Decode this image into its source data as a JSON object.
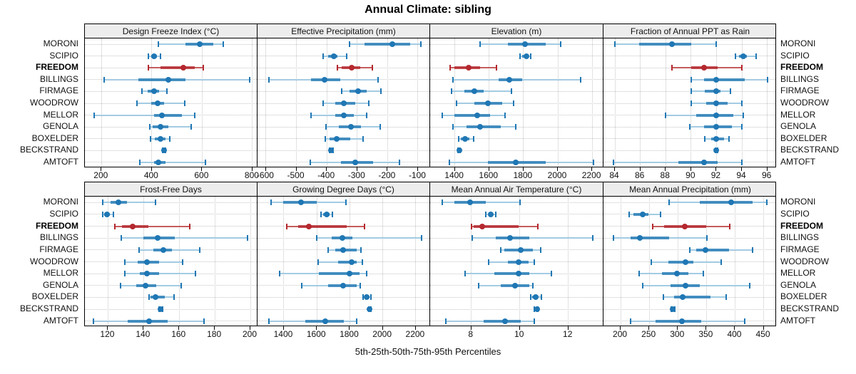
{
  "title": "Annual Climate: sibling",
  "caption": "5th-25th-50th-75th-95th Percentiles",
  "colors": {
    "station": "#1f77b4",
    "station_range": "#a3cbe2",
    "highlight": "#b4282e",
    "highlight_range": "#c45c5c",
    "grid": "#c4c4c4",
    "header_bg": "#ededed",
    "border": "#000000"
  },
  "chart_data": {
    "type": "scatter",
    "subtype": "dot-and-percentile-interval trellis",
    "title": "Annual Climate: sibling",
    "caption": "5th-25th-50th-75th-95th Percentiles",
    "percentile_labels": [
      "5th",
      "25th",
      "50th",
      "75th",
      "95th"
    ],
    "legend_position": "none",
    "grid": "dotted",
    "stations": [
      "MORONI",
      "SCIPIO",
      "FREEDOM",
      "BILLINGS",
      "FIRMAGE",
      "WOODROW",
      "MELLOR",
      "GENOLA",
      "BOXELDER",
      "BECKSTRAND",
      "AMTOFT"
    ],
    "highlight_station": "FREEDOM",
    "panels": [
      {
        "title": "Design Freeze Index (°C)",
        "row": 0,
        "col": 0,
        "xmin": 134,
        "xmax": 820,
        "ticks": [
          200,
          400,
          600,
          800
        ],
        "series": [
          [
            425,
            535,
            590,
            645,
            685
          ],
          [
            385,
            398,
            408,
            420,
            435
          ],
          [
            385,
            435,
            525,
            570,
            605
          ],
          [
            210,
            347,
            467,
            533,
            790
          ],
          [
            360,
            383,
            410,
            430,
            460
          ],
          [
            340,
            398,
            422,
            450,
            530
          ],
          [
            170,
            408,
            440,
            519,
            570
          ],
          [
            393,
            403,
            434,
            465,
            557
          ],
          [
            395,
            413,
            434,
            455,
            472
          ],
          [
            442,
            446,
            448,
            451,
            454
          ],
          [
            352,
            408,
            427,
            455,
            612
          ]
        ]
      },
      {
        "title": "Effective Precipitation (mm)",
        "row": 0,
        "col": 1,
        "xmin": -628,
        "xmax": -60,
        "ticks": [
          -600,
          -500,
          -400,
          -300,
          -200,
          -100
        ],
        "series": [
          [
            -325,
            -275,
            -185,
            -125,
            -90
          ],
          [
            -411,
            -396,
            -378,
            -364,
            -335
          ],
          [
            -364,
            -352,
            -318,
            -290,
            -251
          ],
          [
            -590,
            -452,
            -407,
            -356,
            -231
          ],
          [
            -350,
            -326,
            -297,
            -270,
            -223
          ],
          [
            -413,
            -373,
            -343,
            -306,
            -262
          ],
          [
            -452,
            -372,
            -343,
            -311,
            -269
          ],
          [
            -402,
            -360,
            -320,
            -287,
            -224
          ],
          [
            -406,
            -390,
            -367,
            -323,
            -281
          ],
          [
            -392,
            -389,
            -386,
            -383,
            -380
          ],
          [
            -454,
            -353,
            -306,
            -248,
            -161
          ]
        ]
      },
      {
        "title": "Elevation (m)",
        "row": 0,
        "col": 2,
        "xmin": 1256,
        "xmax": 2266,
        "ticks": [
          1400,
          1600,
          1800,
          2000,
          2200
        ],
        "series": [
          [
            1545,
            1710,
            1810,
            1930,
            2017
          ],
          [
            1778,
            1792,
            1817,
            1830,
            1840
          ],
          [
            1373,
            1397,
            1480,
            1545,
            1642
          ],
          [
            1390,
            1653,
            1716,
            1792,
            2134
          ],
          [
            1381,
            1457,
            1515,
            1567,
            1730
          ],
          [
            1411,
            1515,
            1591,
            1674,
            1743
          ],
          [
            1325,
            1397,
            1529,
            1605,
            1692
          ],
          [
            1390,
            1467,
            1547,
            1667,
            1754
          ],
          [
            1421,
            1434,
            1459,
            1484,
            1511
          ],
          [
            1420,
            1423,
            1426,
            1429,
            1432
          ],
          [
            1369,
            1591,
            1754,
            1928,
            2207
          ]
        ]
      },
      {
        "title": "Fraction of Annual PPT as Rain",
        "row": 0,
        "col": 3,
        "xmin": 83.1,
        "xmax": 96.75,
        "ticks": [
          84,
          86,
          88,
          90,
          92,
          94,
          96
        ],
        "series": [
          [
            84,
            85.9,
            88.5,
            90,
            92
          ],
          [
            93.5,
            93.8,
            94.1,
            94.4,
            95.1
          ],
          [
            88.5,
            90,
            91,
            92.1,
            94
          ],
          [
            90,
            91,
            92,
            94.2,
            96
          ],
          [
            90,
            91.1,
            92,
            92.3,
            93.1
          ],
          [
            90,
            91.2,
            92,
            92.9,
            94
          ],
          [
            88,
            90.4,
            92,
            93.3,
            94.1
          ],
          [
            89.9,
            91,
            92,
            93.2,
            94
          ],
          [
            91.1,
            91.6,
            92,
            92.6,
            93
          ],
          [
            91.9,
            91.95,
            92,
            92.05,
            92.1
          ],
          [
            83.9,
            89,
            91,
            92.1,
            94
          ]
        ]
      },
      {
        "title": "Frost-Free Days",
        "row": 1,
        "col": 0,
        "xmin": 107,
        "xmax": 204,
        "ticks": [
          120,
          140,
          160,
          180,
          200
        ],
        "series": [
          [
            117,
            121.5,
            126,
            130.5,
            146.5
          ],
          [
            117,
            118,
            119.5,
            121,
            123
          ],
          [
            124,
            128,
            134,
            142.5,
            166
          ],
          [
            127.5,
            140,
            148,
            157.5,
            198.5
          ],
          [
            137.5,
            145.5,
            151,
            156,
            171.5
          ],
          [
            129.5,
            136.5,
            142,
            148.5,
            162
          ],
          [
            129.5,
            138,
            142,
            148.5,
            169
          ],
          [
            127,
            136,
            141,
            147,
            161
          ],
          [
            143,
            144,
            146.5,
            152,
            157
          ],
          [
            148.5,
            149,
            149.5,
            150,
            150.5
          ],
          [
            112,
            131,
            143,
            153.5,
            174
          ]
        ]
      },
      {
        "title": "Growing Degree Days (°C)",
        "row": 1,
        "col": 1,
        "xmin": 1240,
        "xmax": 2287,
        "ticks": [
          1400,
          1600,
          1800,
          2000,
          2200
        ],
        "series": [
          [
            1323,
            1397,
            1503,
            1597,
            1775
          ],
          [
            1626,
            1637,
            1659,
            1675,
            1693
          ],
          [
            1417,
            1488,
            1553,
            1783,
            1891
          ],
          [
            1597,
            1691,
            1757,
            1814,
            2235
          ],
          [
            1667,
            1713,
            1759,
            1843,
            1868
          ],
          [
            1609,
            1727,
            1811,
            1843,
            1877
          ],
          [
            1372,
            1611,
            1800,
            1858,
            1901
          ],
          [
            1507,
            1670,
            1759,
            1843,
            1865
          ],
          [
            1881,
            1888,
            1903,
            1920,
            1930
          ],
          [
            1914,
            1917,
            1920,
            1923,
            1926
          ],
          [
            1311,
            1529,
            1652,
            1764,
            1843
          ]
        ]
      },
      {
        "title": "Mean Annual Air Temperature (°C)",
        "row": 1,
        "col": 2,
        "xmin": 6.3,
        "xmax": 13.45,
        "ticks": [
          8,
          10,
          12
        ],
        "series": [
          [
            6.8,
            7.3,
            7.95,
            8.6,
            10
          ],
          [
            8.6,
            8.7,
            8.8,
            8.9,
            9
          ],
          [
            8,
            8.1,
            8.45,
            9.95,
            10.75
          ],
          [
            8.05,
            9,
            9.6,
            10.4,
            13
          ],
          [
            9.2,
            9.35,
            10.05,
            10.55,
            10.85
          ],
          [
            8.7,
            9.5,
            9.95,
            10.35,
            10.6
          ],
          [
            7.75,
            8.95,
            9.95,
            10.4,
            11.3
          ],
          [
            8.3,
            9.2,
            9.8,
            10.4,
            10.55
          ],
          [
            10.45,
            10.5,
            10.65,
            10.75,
            10.9
          ],
          [
            10.6,
            10.65,
            10.7,
            10.72,
            10.75
          ],
          [
            6.95,
            8.5,
            9.4,
            10.05,
            10.6
          ]
        ]
      },
      {
        "title": "Mean Annual Precipitation (mm)",
        "row": 1,
        "col": 3,
        "xmin": 170,
        "xmax": 473,
        "ticks": [
          200,
          250,
          300,
          350,
          400,
          450
        ],
        "series": [
          [
            285,
            338,
            393,
            430,
            456
          ],
          [
            215,
            222,
            238,
            249,
            270
          ],
          [
            256,
            276,
            312,
            349,
            391
          ],
          [
            188,
            218,
            233,
            285,
            351
          ],
          [
            321,
            332,
            348,
            390,
            430
          ],
          [
            253,
            284,
            314,
            327,
            376
          ],
          [
            232,
            272,
            298,
            318,
            344
          ],
          [
            239,
            287,
            314,
            338,
            425
          ],
          [
            275,
            293,
            309,
            357,
            385
          ],
          [
            288,
            290,
            291,
            293,
            295
          ],
          [
            217,
            261,
            307,
            341,
            417
          ]
        ]
      }
    ]
  }
}
